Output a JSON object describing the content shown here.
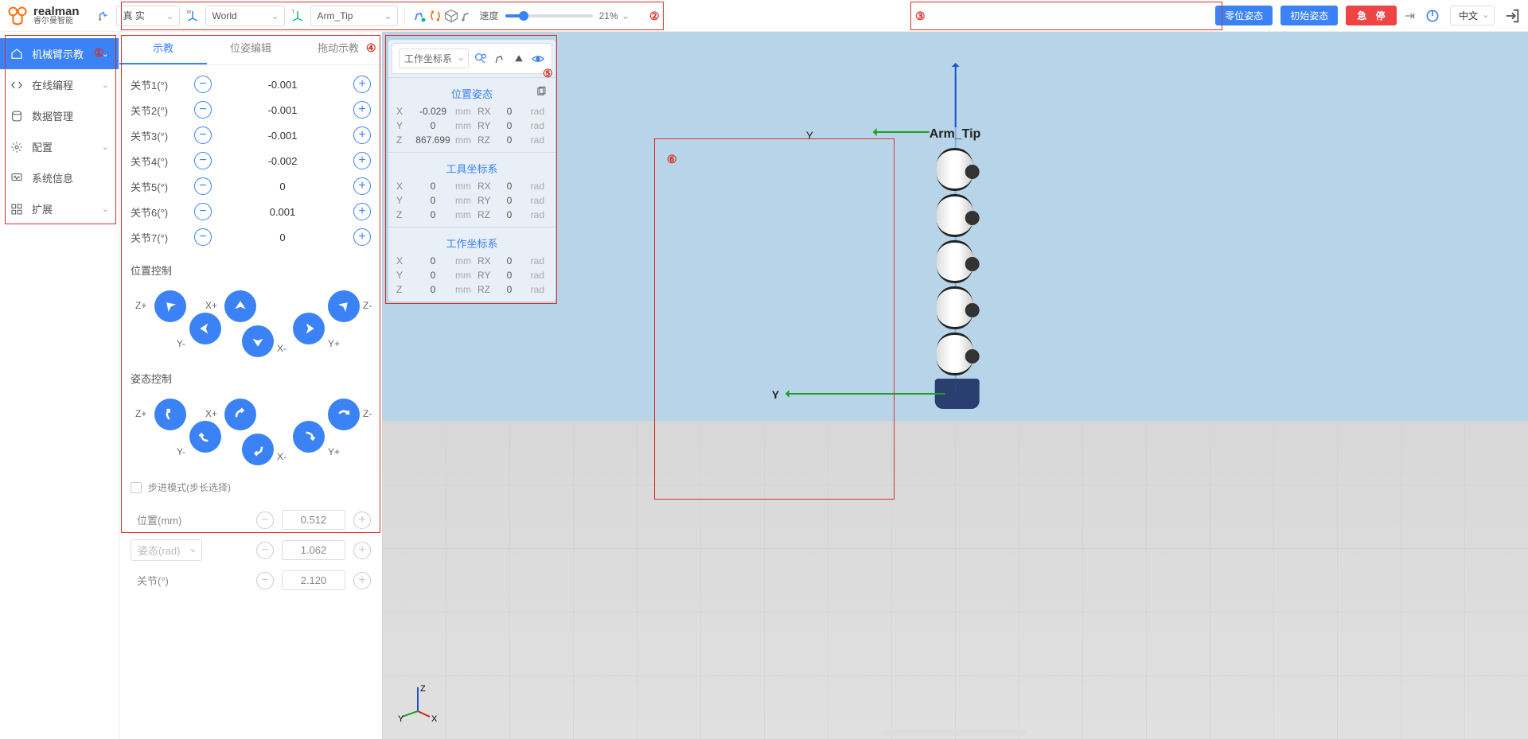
{
  "logo": {
    "main": "realman",
    "sub": "睿尔曼智能"
  },
  "topbar": {
    "mode": "真 实",
    "world_frame": "World",
    "tool_frame": "Arm_Tip",
    "speed_label": "速度",
    "speed_value": "21%",
    "speed_pct": 21,
    "btn_zero": "零位姿态",
    "btn_init": "初始姿态",
    "btn_estop": "急 停",
    "lang": "中文"
  },
  "sidebar": {
    "items": [
      {
        "label": "机械臂示教",
        "icon": "home",
        "active": true,
        "expandable": true
      },
      {
        "label": "在线编程",
        "icon": "code",
        "expandable": true
      },
      {
        "label": "数据管理",
        "icon": "database"
      },
      {
        "label": "配置",
        "icon": "settings",
        "expandable": true
      },
      {
        "label": "系统信息",
        "icon": "monitor"
      },
      {
        "label": "扩展",
        "icon": "grid",
        "expandable": true
      }
    ]
  },
  "teach": {
    "tabs": [
      {
        "label": "示教",
        "active": true
      },
      {
        "label": "位姿编辑"
      },
      {
        "label": "拖动示教"
      }
    ],
    "joints": [
      {
        "label": "关节1(°)",
        "value": "-0.001"
      },
      {
        "label": "关节2(°)",
        "value": "-0.001"
      },
      {
        "label": "关节3(°)",
        "value": "-0.001"
      },
      {
        "label": "关节4(°)",
        "value": "-0.002"
      },
      {
        "label": "关节5(°)",
        "value": "0"
      },
      {
        "label": "关节6(°)",
        "value": "0.001"
      },
      {
        "label": "关节7(°)",
        "value": "0"
      }
    ],
    "pos_ctrl_title": "位置控制",
    "att_ctrl_title": "姿态控制",
    "pad_labels": {
      "zp": "Z+",
      "zm": "Z-",
      "xp": "X+",
      "xm": "X-",
      "yp": "Y+",
      "ym": "Y-"
    },
    "step_mode_label": "步进模式(步长选择)",
    "steps": [
      {
        "label": "位置(mm)",
        "value": "0.512",
        "type": "plain"
      },
      {
        "label": "姿态(rad)",
        "value": "1.062",
        "type": "select"
      },
      {
        "label": "关节(°)",
        "value": "2.120",
        "type": "plain"
      }
    ]
  },
  "pose": {
    "frame_select": "工作坐标系",
    "sections": [
      {
        "title": "位置姿态",
        "copyable": true,
        "rows": [
          {
            "ax": "X",
            "v1": "-0.029",
            "u1": "mm",
            "rax": "RX",
            "v2": "0",
            "u2": "rad"
          },
          {
            "ax": "Y",
            "v1": "0",
            "u1": "mm",
            "rax": "RY",
            "v2": "0",
            "u2": "rad"
          },
          {
            "ax": "Z",
            "v1": "867.699",
            "u1": "mm",
            "rax": "RZ",
            "v2": "0",
            "u2": "rad"
          }
        ]
      },
      {
        "title": "工具坐标系",
        "rows": [
          {
            "ax": "X",
            "v1": "0",
            "u1": "mm",
            "rax": "RX",
            "v2": "0",
            "u2": "rad"
          },
          {
            "ax": "Y",
            "v1": "0",
            "u1": "mm",
            "rax": "RY",
            "v2": "0",
            "u2": "rad"
          },
          {
            "ax": "Z",
            "v1": "0",
            "u1": "mm",
            "rax": "RZ",
            "v2": "0",
            "u2": "rad"
          }
        ]
      },
      {
        "title": "工作坐标系",
        "rows": [
          {
            "ax": "X",
            "v1": "0",
            "u1": "mm",
            "rax": "RX",
            "v2": "0",
            "u2": "rad"
          },
          {
            "ax": "Y",
            "v1": "0",
            "u1": "mm",
            "rax": "RY",
            "v2": "0",
            "u2": "rad"
          },
          {
            "ax": "Z",
            "v1": "0",
            "u1": "mm",
            "rax": "RZ",
            "v2": "0",
            "u2": "rad"
          }
        ]
      }
    ]
  },
  "viewport": {
    "tip_label": "Arm_Tip",
    "axis_z": "Z",
    "axis_y": "Y",
    "axis_x": "X"
  },
  "annotations": {
    "a1": "①",
    "a2": "②",
    "a3": "③",
    "a4": "④",
    "a5": "⑤",
    "a6": "⑥"
  },
  "colors": {
    "primary": "#3b82f6",
    "danger": "#ef4444",
    "annot": "#d93025",
    "sky": "#b8d4e8",
    "floor": "#d8d8d8"
  }
}
